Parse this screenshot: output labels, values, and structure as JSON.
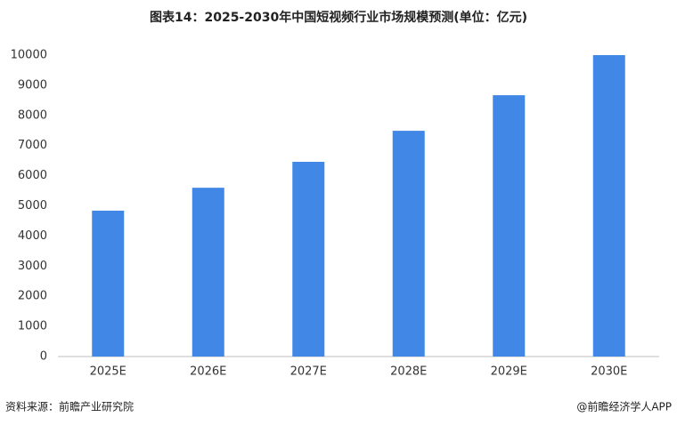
{
  "chart_data": {
    "type": "bar",
    "title": "图表14：2025-2030年中国短视频行业市场规模预测(单位：亿元)",
    "categories": [
      "2025E",
      "2026E",
      "2027E",
      "2028E",
      "2029E",
      "2030E"
    ],
    "values": [
      4840,
      5600,
      6460,
      7490,
      8670,
      10000
    ],
    "color": "#4188e6",
    "ylim": [
      0,
      10000
    ],
    "yticks": [
      0,
      1000,
      2000,
      3000,
      4000,
      5000,
      6000,
      7000,
      8000,
      9000,
      10000
    ],
    "grid": false,
    "source": "资料来源：前瞻产业研究院",
    "credit": "@前瞻经济学人APP"
  }
}
